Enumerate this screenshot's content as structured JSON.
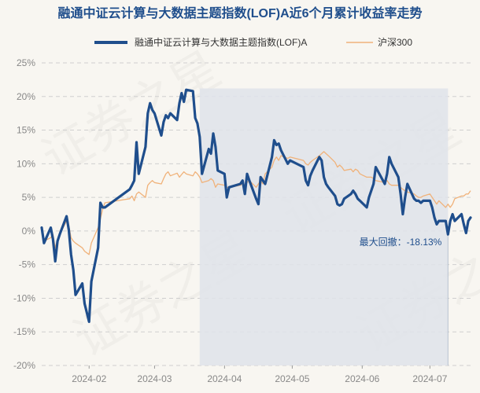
{
  "chart_data": {
    "type": "line",
    "title": "融通中证云计算与大数据主题指数(LOF)A近6个月累计收益率走势",
    "watermark": "证券之星",
    "legend_position": "top",
    "grid": "horizontal-dashed",
    "y_unit": "%",
    "ylim": [
      -20,
      25
    ],
    "yticks": [
      "25%",
      "20%",
      "15%",
      "10%",
      "5%",
      "0%",
      "-5%",
      "-10%",
      "-15%",
      "-20%"
    ],
    "xlim": [
      "2024-01-11",
      "2024-07-19"
    ],
    "xticks": [
      "2024-02",
      "2024-03",
      "2024-04",
      "2024-05",
      "2024-06",
      "2024-07"
    ],
    "colors": {
      "fund": "#1f4e8c",
      "index": "#f0b27a",
      "drawdown_fill": "#dfe3ea",
      "background": "#f8f6f1"
    },
    "max_drawdown": {
      "label": "最大回撤：-18.13%",
      "start": "2024-03-21",
      "end": "2024-07-09",
      "value": -18.13
    },
    "series": [
      {
        "name": "融通中证云计算与大数据主题指数(LOF)A",
        "points": [
          [
            "2024-01-11",
            0.5
          ],
          [
            "2024-01-12",
            -1.8
          ],
          [
            "2024-01-15",
            0.5
          ],
          [
            "2024-01-16",
            -1.2
          ],
          [
            "2024-01-17",
            -4.5
          ],
          [
            "2024-01-18",
            -1.5
          ],
          [
            "2024-01-19",
            -0.5
          ],
          [
            "2024-01-22",
            2.2
          ],
          [
            "2024-01-23",
            0.2
          ],
          [
            "2024-01-24",
            -3.5
          ],
          [
            "2024-01-25",
            -5.8
          ],
          [
            "2024-01-26",
            -9.5
          ],
          [
            "2024-01-29",
            -7.8
          ],
          [
            "2024-01-30",
            -10.8
          ],
          [
            "2024-02-01",
            -13.5
          ],
          [
            "2024-02-02",
            -7.5
          ],
          [
            "2024-02-05",
            -2.5
          ],
          [
            "2024-02-06",
            4.2
          ],
          [
            "2024-02-07",
            3.5
          ],
          [
            "2024-02-08",
            3.5
          ],
          [
            "2024-02-19",
            6.2
          ],
          [
            "2024-02-20",
            6.8
          ],
          [
            "2024-02-21",
            7.5
          ],
          [
            "2024-02-22",
            13.2
          ],
          [
            "2024-02-23",
            8.5
          ],
          [
            "2024-02-26",
            12.5
          ],
          [
            "2024-02-27",
            17.5
          ],
          [
            "2024-02-28",
            19.0
          ],
          [
            "2024-02-29",
            18.0
          ],
          [
            "2024-03-01",
            17.5
          ],
          [
            "2024-03-04",
            14.2
          ],
          [
            "2024-03-05",
            16.2
          ],
          [
            "2024-03-06",
            17.2
          ],
          [
            "2024-03-07",
            16.8
          ],
          [
            "2024-03-08",
            17.5
          ],
          [
            "2024-03-11",
            16.5
          ],
          [
            "2024-03-12",
            19.0
          ],
          [
            "2024-03-13",
            20.5
          ],
          [
            "2024-03-14",
            19.2
          ],
          [
            "2024-03-15",
            21.0
          ],
          [
            "2024-03-18",
            20.8
          ],
          [
            "2024-03-19",
            16.8
          ],
          [
            "2024-03-20",
            16.0
          ],
          [
            "2024-03-21",
            14.0
          ],
          [
            "2024-03-22",
            8.5
          ],
          [
            "2024-03-25",
            12.2
          ],
          [
            "2024-03-26",
            11.5
          ],
          [
            "2024-03-27",
            14.5
          ],
          [
            "2024-03-28",
            12.5
          ],
          [
            "2024-03-29",
            9.0
          ],
          [
            "2024-04-01",
            8.5
          ],
          [
            "2024-04-02",
            5.0
          ],
          [
            "2024-04-03",
            6.5
          ],
          [
            "2024-04-08",
            7.0
          ],
          [
            "2024-04-09",
            7.5
          ],
          [
            "2024-04-10",
            5.5
          ],
          [
            "2024-04-11",
            8.5
          ],
          [
            "2024-04-12",
            7.5
          ],
          [
            "2024-04-15",
            4.8
          ],
          [
            "2024-04-16",
            4.0
          ],
          [
            "2024-04-17",
            8.0
          ],
          [
            "2024-04-18",
            7.5
          ],
          [
            "2024-04-19",
            7.0
          ],
          [
            "2024-04-22",
            11.0
          ],
          [
            "2024-04-23",
            13.5
          ],
          [
            "2024-04-24",
            12.8
          ],
          [
            "2024-04-25",
            13.0
          ],
          [
            "2024-04-26",
            12.0
          ],
          [
            "2024-04-29",
            10.0
          ],
          [
            "2024-04-30",
            10.5
          ],
          [
            "2024-05-06",
            9.5
          ],
          [
            "2024-05-07",
            7.5
          ],
          [
            "2024-05-08",
            6.8
          ],
          [
            "2024-05-09",
            8.2
          ],
          [
            "2024-05-10",
            9.0
          ],
          [
            "2024-05-13",
            11.0
          ],
          [
            "2024-05-14",
            10.5
          ],
          [
            "2024-05-15",
            8.0
          ],
          [
            "2024-05-16",
            7.0
          ],
          [
            "2024-05-17",
            6.5
          ],
          [
            "2024-05-20",
            5.2
          ],
          [
            "2024-05-21",
            4.0
          ],
          [
            "2024-05-22",
            3.8
          ],
          [
            "2024-05-23",
            4.0
          ],
          [
            "2024-05-24",
            4.8
          ],
          [
            "2024-05-27",
            5.5
          ],
          [
            "2024-05-28",
            6.0
          ],
          [
            "2024-05-29",
            5.5
          ],
          [
            "2024-05-30",
            4.8
          ],
          [
            "2024-05-31",
            4.5
          ],
          [
            "2024-06-03",
            3.5
          ],
          [
            "2024-06-04",
            5.0
          ],
          [
            "2024-06-05",
            6.0
          ],
          [
            "2024-06-06",
            7.0
          ],
          [
            "2024-06-07",
            9.5
          ],
          [
            "2024-06-11",
            7.0
          ],
          [
            "2024-06-12",
            8.5
          ],
          [
            "2024-06-13",
            11.0
          ],
          [
            "2024-06-14",
            10.0
          ],
          [
            "2024-06-17",
            8.0
          ],
          [
            "2024-06-18",
            5.5
          ],
          [
            "2024-06-19",
            2.5
          ],
          [
            "2024-06-20",
            5.0
          ],
          [
            "2024-06-21",
            7.0
          ],
          [
            "2024-06-24",
            4.8
          ],
          [
            "2024-06-25",
            4.5
          ],
          [
            "2024-06-26",
            4.5
          ],
          [
            "2024-06-27",
            4.2
          ],
          [
            "2024-06-28",
            4.5
          ],
          [
            "2024-07-01",
            4.5
          ],
          [
            "2024-07-02",
            3.5
          ],
          [
            "2024-07-03",
            2.0
          ],
          [
            "2024-07-04",
            1.0
          ],
          [
            "2024-07-05",
            1.5
          ],
          [
            "2024-07-08",
            1.5
          ],
          [
            "2024-07-09",
            -0.5
          ],
          [
            "2024-07-10",
            1.5
          ],
          [
            "2024-07-11",
            2.5
          ],
          [
            "2024-07-12",
            1.5
          ],
          [
            "2024-07-15",
            2.5
          ],
          [
            "2024-07-16",
            1.0
          ],
          [
            "2024-07-17",
            -0.3
          ],
          [
            "2024-07-18",
            1.5
          ],
          [
            "2024-07-19",
            2.0
          ]
        ]
      },
      {
        "name": "沪深300",
        "points": [
          [
            "2024-01-11",
            0.0
          ],
          [
            "2024-01-12",
            -1.5
          ],
          [
            "2024-01-15",
            -1.0
          ],
          [
            "2024-01-16",
            -0.5
          ],
          [
            "2024-01-17",
            -2.5
          ],
          [
            "2024-01-18",
            -1.2
          ],
          [
            "2024-01-19",
            -0.5
          ],
          [
            "2024-01-22",
            1.5
          ],
          [
            "2024-01-23",
            0.8
          ],
          [
            "2024-01-24",
            -1.0
          ],
          [
            "2024-01-25",
            -1.5
          ],
          [
            "2024-01-26",
            -1.8
          ],
          [
            "2024-01-29",
            -2.5
          ],
          [
            "2024-01-30",
            -3.0
          ],
          [
            "2024-02-01",
            -3.5
          ],
          [
            "2024-02-02",
            -1.8
          ],
          [
            "2024-02-05",
            0.5
          ],
          [
            "2024-02-06",
            1.8
          ],
          [
            "2024-02-07",
            3.2
          ],
          [
            "2024-02-08",
            4.2
          ],
          [
            "2024-02-19",
            4.8
          ],
          [
            "2024-02-20",
            5.2
          ],
          [
            "2024-02-21",
            4.5
          ],
          [
            "2024-02-22",
            5.5
          ],
          [
            "2024-02-23",
            5.8
          ],
          [
            "2024-02-26",
            5.0
          ],
          [
            "2024-02-27",
            6.8
          ],
          [
            "2024-02-28",
            7.2
          ],
          [
            "2024-02-29",
            7.5
          ],
          [
            "2024-03-01",
            7.2
          ],
          [
            "2024-03-04",
            7.0
          ],
          [
            "2024-03-05",
            7.8
          ],
          [
            "2024-03-06",
            8.5
          ],
          [
            "2024-03-07",
            8.8
          ],
          [
            "2024-03-08",
            8.2
          ],
          [
            "2024-03-11",
            8.6
          ],
          [
            "2024-03-12",
            8.0
          ],
          [
            "2024-03-13",
            8.4
          ],
          [
            "2024-03-14",
            8.8
          ],
          [
            "2024-03-15",
            8.5
          ],
          [
            "2024-03-18",
            8.2
          ],
          [
            "2024-03-19",
            8.8
          ],
          [
            "2024-03-20",
            8.5
          ],
          [
            "2024-03-21",
            8.0
          ],
          [
            "2024-03-22",
            7.2
          ],
          [
            "2024-03-25",
            7.5
          ],
          [
            "2024-03-26",
            7.8
          ],
          [
            "2024-03-27",
            7.5
          ],
          [
            "2024-03-28",
            6.5
          ],
          [
            "2024-03-29",
            7.0
          ],
          [
            "2024-04-01",
            6.8
          ],
          [
            "2024-04-02",
            6.5
          ],
          [
            "2024-04-03",
            6.5
          ],
          [
            "2024-04-08",
            6.8
          ],
          [
            "2024-04-09",
            7.0
          ],
          [
            "2024-04-10",
            6.8
          ],
          [
            "2024-04-11",
            7.2
          ],
          [
            "2024-04-12",
            7.5
          ],
          [
            "2024-04-15",
            6.5
          ],
          [
            "2024-04-16",
            7.0
          ],
          [
            "2024-04-17",
            7.5
          ],
          [
            "2024-04-18",
            7.0
          ],
          [
            "2024-04-19",
            8.5
          ],
          [
            "2024-04-22",
            9.5
          ],
          [
            "2024-04-23",
            10.5
          ],
          [
            "2024-04-24",
            11.0
          ],
          [
            "2024-04-25",
            10.5
          ],
          [
            "2024-04-26",
            11.2
          ],
          [
            "2024-04-29",
            10.8
          ],
          [
            "2024-04-30",
            11.0
          ],
          [
            "2024-05-06",
            10.5
          ],
          [
            "2024-05-07",
            10.0
          ],
          [
            "2024-05-08",
            9.8
          ],
          [
            "2024-05-09",
            10.2
          ],
          [
            "2024-05-10",
            10.5
          ],
          [
            "2024-05-13",
            11.2
          ],
          [
            "2024-05-14",
            11.5
          ],
          [
            "2024-05-15",
            11.8
          ],
          [
            "2024-05-16",
            11.5
          ],
          [
            "2024-05-17",
            11.2
          ],
          [
            "2024-05-20",
            10.2
          ],
          [
            "2024-05-21",
            9.5
          ],
          [
            "2024-05-22",
            9.8
          ],
          [
            "2024-05-23",
            9.5
          ],
          [
            "2024-05-24",
            9.0
          ],
          [
            "2024-05-27",
            9.2
          ],
          [
            "2024-05-28",
            8.8
          ],
          [
            "2024-05-29",
            9.2
          ],
          [
            "2024-05-30",
            9.0
          ],
          [
            "2024-05-31",
            8.5
          ],
          [
            "2024-06-03",
            8.0
          ],
          [
            "2024-06-04",
            8.0
          ],
          [
            "2024-06-05",
            8.0
          ],
          [
            "2024-06-06",
            7.8
          ],
          [
            "2024-06-07",
            7.5
          ],
          [
            "2024-06-11",
            7.2
          ],
          [
            "2024-06-12",
            7.5
          ],
          [
            "2024-06-13",
            7.0
          ],
          [
            "2024-06-14",
            6.8
          ],
          [
            "2024-06-17",
            6.8
          ],
          [
            "2024-06-18",
            6.5
          ],
          [
            "2024-06-19",
            6.2
          ],
          [
            "2024-06-20",
            6.0
          ],
          [
            "2024-06-21",
            5.8
          ],
          [
            "2024-06-24",
            5.5
          ],
          [
            "2024-06-25",
            5.2
          ],
          [
            "2024-06-26",
            5.0
          ],
          [
            "2024-06-27",
            5.0
          ],
          [
            "2024-06-28",
            5.2
          ],
          [
            "2024-07-01",
            5.5
          ],
          [
            "2024-07-02",
            5.0
          ],
          [
            "2024-07-03",
            4.5
          ],
          [
            "2024-07-04",
            4.0
          ],
          [
            "2024-07-05",
            4.5
          ],
          [
            "2024-07-08",
            3.5
          ],
          [
            "2024-07-09",
            4.0
          ],
          [
            "2024-07-10",
            3.5
          ],
          [
            "2024-07-11",
            4.0
          ],
          [
            "2024-07-12",
            4.8
          ],
          [
            "2024-07-15",
            5.2
          ],
          [
            "2024-07-16",
            5.2
          ],
          [
            "2024-07-17",
            5.5
          ],
          [
            "2024-07-18",
            5.5
          ],
          [
            "2024-07-19",
            6.0
          ]
        ]
      }
    ]
  }
}
